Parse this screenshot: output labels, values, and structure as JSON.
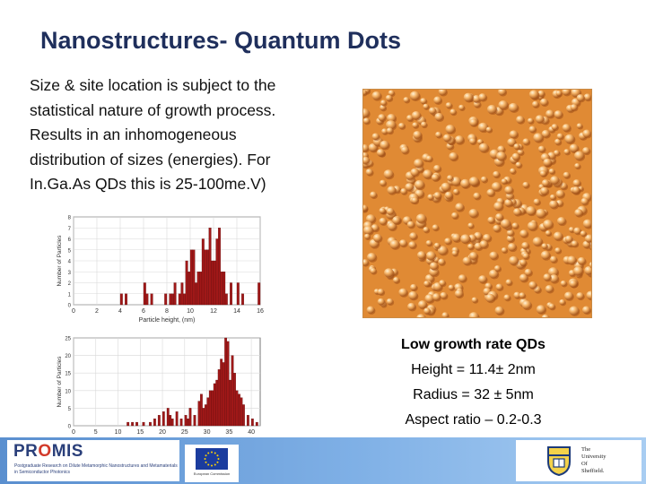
{
  "title": "Nanostructures- Quantum Dots",
  "body_lines": [
    "Size & site location is subject to the",
    "statistical nature of growth process.",
    "Results in an inhomogeneous",
    "distribution of sizes (energies). For",
    "In.Ga.As QDs this is 25-100me.V)"
  ],
  "stats": {
    "heading": "Low growth rate QDs",
    "height": "Height = 11.4± 2nm",
    "radius": "Radius = 32 ± 5nm",
    "aspect": "Aspect ratio – 0.2-0.3"
  },
  "colors": {
    "title": "#1f2f5c",
    "bar": "#a01818",
    "afm_background": "#e08a34",
    "footer": "#6a9fdc"
  },
  "footer": {
    "promis_logo": "PROMIS",
    "promis_sub": "Postgraduate Research on Dilute Metamorphic Nanostructures and Metamaterials in Semiconductor Photonics",
    "eu_caption": "European Commission",
    "uni_lines": [
      "The",
      "University",
      "Of",
      "Sheffield."
    ]
  },
  "chart_data": [
    {
      "type": "bar",
      "ylabel": "Number of Particles",
      "xlabel": "Particle height, (nm)",
      "xlim": [
        0,
        16
      ],
      "ylim": [
        0,
        8
      ],
      "xticks": [
        0,
        2,
        4,
        6,
        8,
        10,
        12,
        14,
        16
      ],
      "yticks": [
        0,
        1,
        2,
        3,
        4,
        5,
        6,
        7,
        8
      ],
      "bin_width": 0.2,
      "x": [
        4.0,
        4.4,
        6.0,
        6.2,
        6.6,
        7.8,
        8.2,
        8.4,
        8.6,
        9.0,
        9.2,
        9.4,
        9.6,
        9.8,
        10.0,
        10.2,
        10.4,
        10.6,
        10.8,
        11.0,
        11.2,
        11.4,
        11.6,
        11.8,
        12.0,
        12.2,
        12.4,
        12.6,
        12.8,
        13.0,
        13.4,
        14.0,
        14.4,
        15.8
      ],
      "values": [
        1,
        1,
        2,
        1,
        1,
        1,
        1,
        1,
        2,
        1,
        2,
        1,
        4,
        3,
        5,
        5,
        2,
        3,
        3,
        6,
        5,
        5,
        7,
        4,
        4,
        6,
        7,
        3,
        3,
        1,
        2,
        2,
        1,
        2
      ]
    },
    {
      "type": "bar",
      "ylabel": "Number of Particles",
      "xlabel": "Particle radius, (nm)",
      "xlim": [
        0,
        42
      ],
      "ylim": [
        0,
        25
      ],
      "xticks": [
        0,
        5,
        10,
        15,
        20,
        25,
        30,
        35,
        40
      ],
      "yticks": [
        0,
        5,
        10,
        15,
        20,
        25
      ],
      "bin_width": 0.5,
      "x": [
        12.0,
        13.0,
        14.0,
        15.5,
        17.0,
        18.0,
        19.0,
        20.0,
        21.0,
        21.5,
        22.0,
        23.0,
        24.0,
        25.0,
        25.5,
        26.0,
        27.0,
        28.0,
        28.5,
        29.0,
        29.5,
        30.0,
        30.5,
        31.0,
        31.5,
        32.0,
        32.5,
        33.0,
        33.5,
        34.0,
        34.5,
        35.0,
        35.5,
        36.0,
        36.5,
        37.0,
        37.5,
        38.0,
        39.0,
        40.0,
        41.0
      ],
      "values": [
        1,
        1,
        1,
        1,
        1,
        2,
        3,
        4,
        5,
        3,
        2,
        4,
        2,
        3,
        2,
        5,
        3,
        7,
        9,
        5,
        6,
        8,
        10,
        10,
        12,
        13,
        16,
        19,
        18,
        25,
        24,
        13,
        20,
        15,
        10,
        9,
        8,
        6,
        3,
        2,
        1
      ]
    }
  ]
}
